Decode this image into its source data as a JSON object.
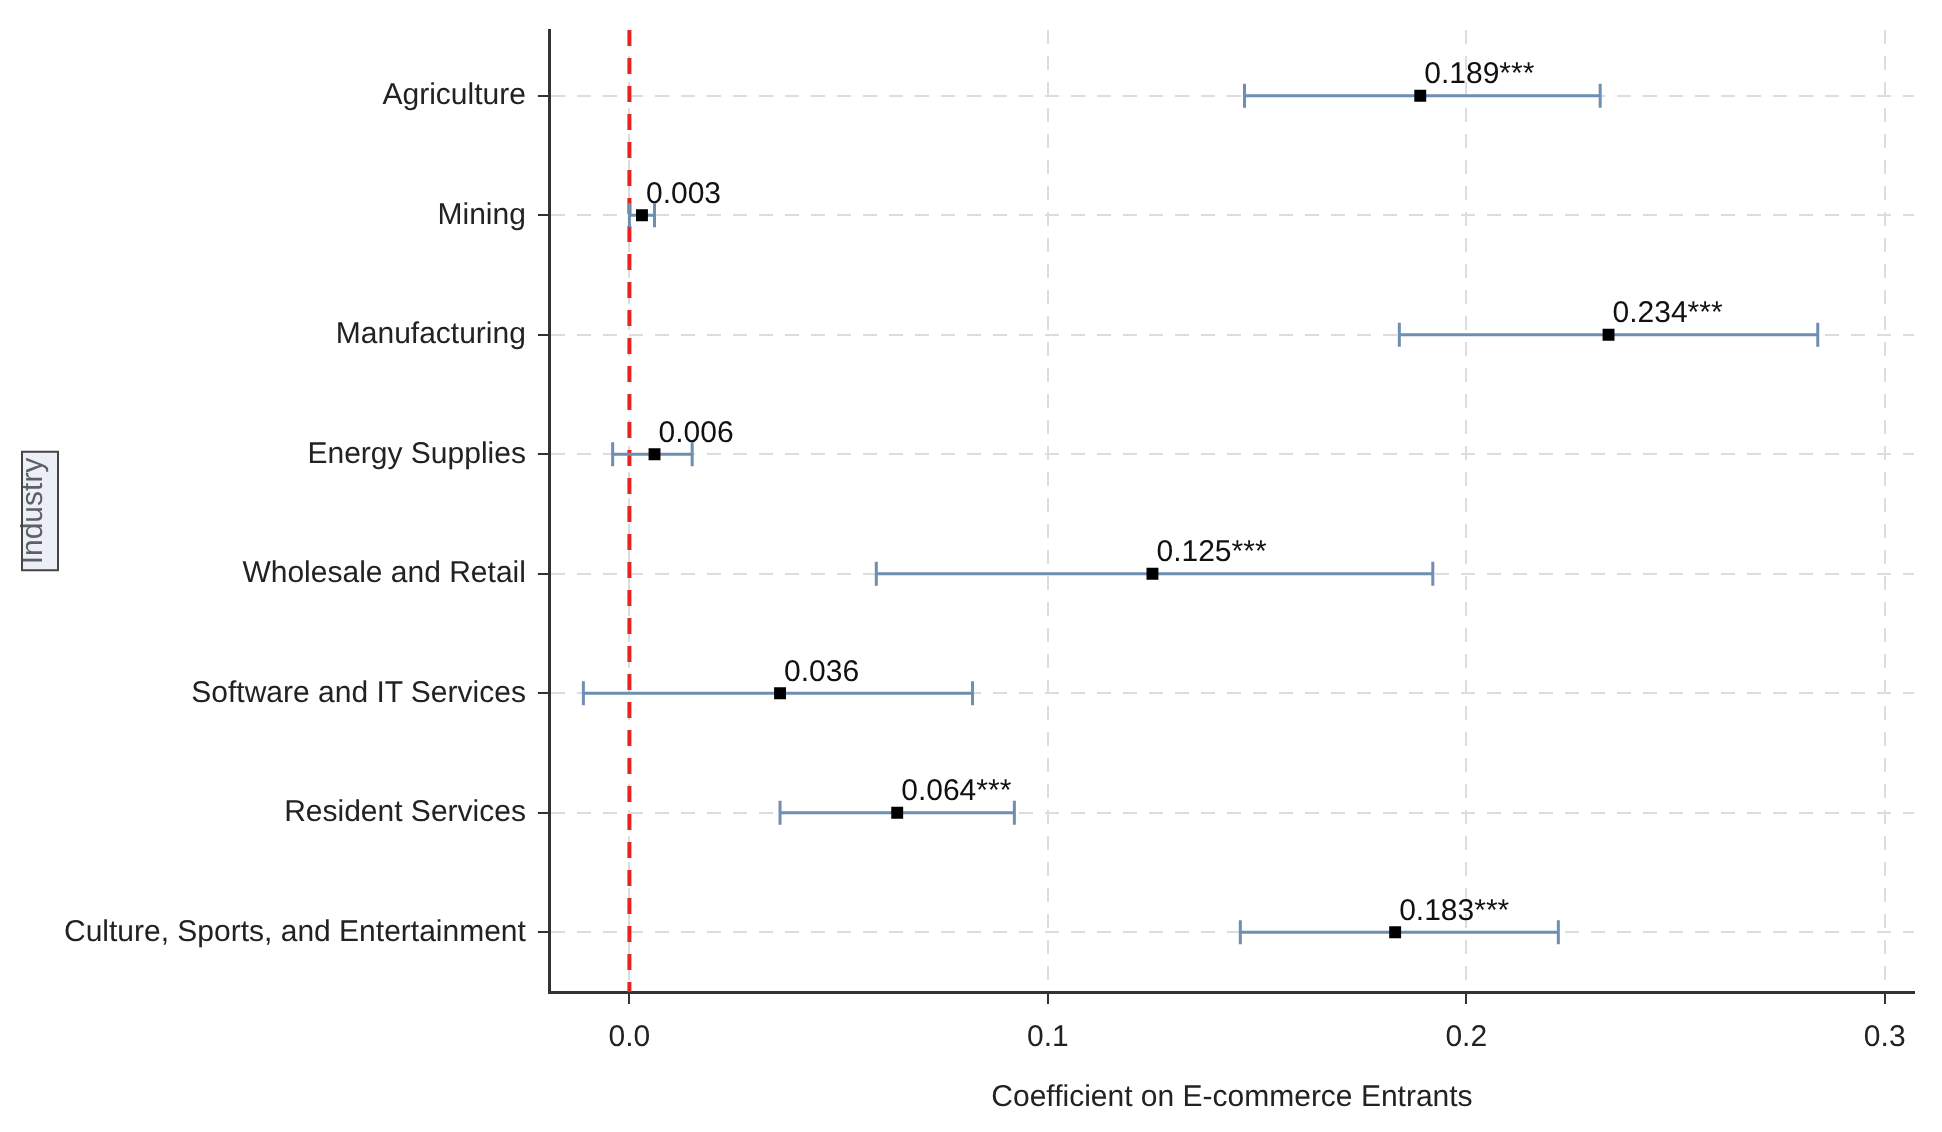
{
  "chart_data": {
    "type": "scatter",
    "orientation": "horizontal",
    "categories": [
      "Agriculture",
      "Mining",
      "Manufacturing",
      "Energy Supplies",
      "Wholesale and Retail",
      "Software and IT Services",
      "Resident Services",
      "Culture, Sports, and Entertainment"
    ],
    "values": [
      0.189,
      0.003,
      0.234,
      0.006,
      0.125,
      0.036,
      0.064,
      0.183
    ],
    "errors": [
      [
        0.147,
        0.232
      ],
      [
        0.0,
        0.006
      ],
      [
        0.184,
        0.284
      ],
      [
        -0.004,
        0.015
      ],
      [
        0.059,
        0.192
      ],
      [
        -0.011,
        0.082
      ],
      [
        0.036,
        0.092
      ],
      [
        0.146,
        0.222
      ]
    ],
    "value_labels": [
      "0.189***",
      "0.003",
      "0.234***",
      "0.006",
      "0.125***",
      "0.036",
      "0.064***",
      "0.183***"
    ],
    "color": "#000000",
    "marker": "square",
    "xlabel": "Coefficient on E-commerce Entrants",
    "ylabel": "Industry",
    "xlim": [
      -0.019,
      0.307
    ],
    "xticks": [
      {
        "value": 0,
        "label": "0.0"
      },
      {
        "value": 0.1,
        "label": "0.1"
      },
      {
        "value": 0.2,
        "label": "0.2"
      },
      {
        "value": 0.3,
        "label": "0.3"
      }
    ],
    "ref_lines": [
      {
        "axis": "x",
        "value": 0,
        "label": null,
        "color": "#e8221e",
        "line_style": "dashed"
      }
    ],
    "grid": true
  }
}
